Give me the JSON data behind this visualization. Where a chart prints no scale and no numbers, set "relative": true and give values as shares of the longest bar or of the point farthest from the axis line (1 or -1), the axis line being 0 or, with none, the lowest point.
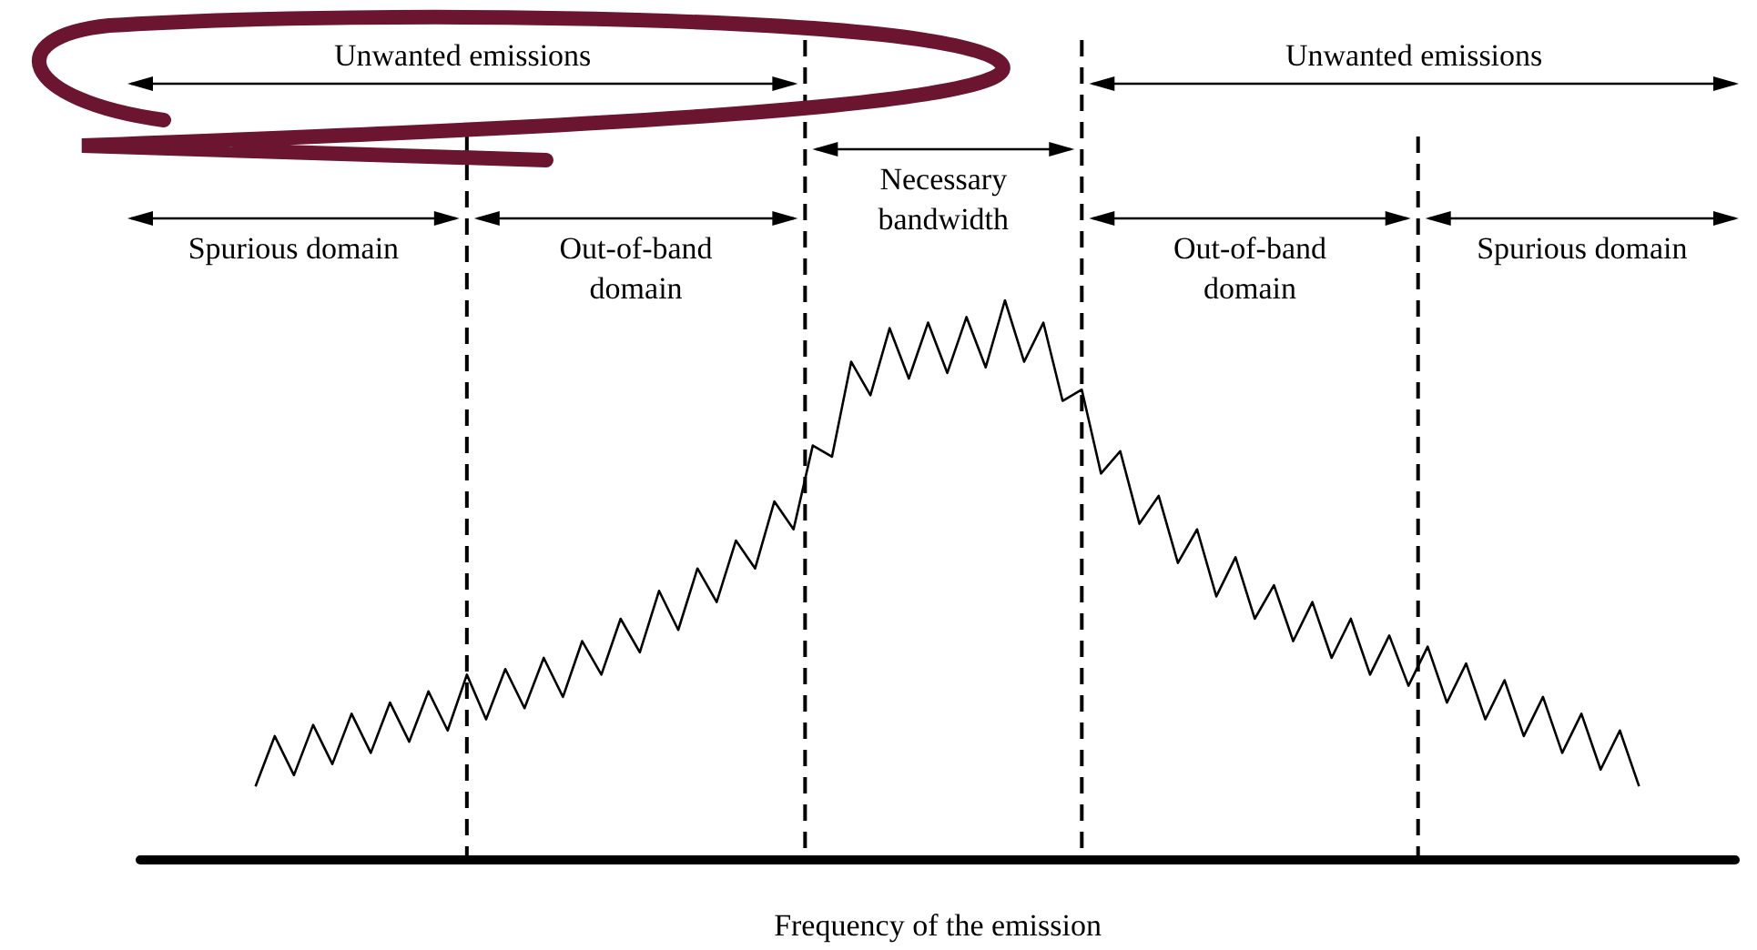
{
  "chart_data": {
    "type": "line",
    "relative": true,
    "color": "#000000",
    "marker": "none",
    "tick_labels": false,
    "xlabel": "Frequency of the emission",
    "categories": [
      null,
      null,
      null,
      null,
      null,
      null,
      null,
      null,
      null,
      null,
      null,
      null,
      null,
      null,
      null,
      null,
      null,
      null,
      null,
      null,
      null,
      null,
      null,
      null,
      null,
      null,
      null,
      null,
      null,
      null,
      null,
      null,
      null,
      null,
      null,
      null,
      null,
      null,
      null,
      null,
      null,
      null,
      null,
      null,
      null,
      null,
      null,
      null,
      null,
      null,
      null,
      null,
      null,
      null,
      null,
      null,
      null,
      null,
      null,
      null,
      null,
      null,
      null,
      null,
      null,
      null,
      null,
      null,
      null,
      null,
      null,
      null,
      null,
      null,
      null,
      null,
      null,
      null,
      null,
      null,
      null,
      null,
      null,
      null
    ],
    "values": [
      null,
      null,
      null,
      null,
      null,
      null,
      0.13,
      0.22,
      0.15,
      0.24,
      0.17,
      0.26,
      0.19,
      0.28,
      0.21,
      0.3,
      0.23,
      0.33,
      0.25,
      0.34,
      0.27,
      0.36,
      0.29,
      0.39,
      0.33,
      0.43,
      0.37,
      0.48,
      0.41,
      0.52,
      0.46,
      0.57,
      0.52,
      0.64,
      0.59,
      0.74,
      0.72,
      0.89,
      0.83,
      0.95,
      0.86,
      0.96,
      0.87,
      0.97,
      0.88,
      1.0,
      0.89,
      0.96,
      0.82,
      0.84,
      0.69,
      0.73,
      0.6,
      0.65,
      0.53,
      0.59,
      0.47,
      0.54,
      0.43,
      0.49,
      0.39,
      0.46,
      0.36,
      0.43,
      0.33,
      0.4,
      0.31,
      0.38,
      0.28,
      0.35,
      0.25,
      0.32,
      0.22,
      0.29,
      0.19,
      0.26,
      0.16,
      0.23,
      0.13,
      null,
      null,
      null,
      null,
      null
    ],
    "annotations": [
      "Unwanted emissions",
      "Unwanted emissions",
      "Necessary bandwidth",
      "Spurious domain",
      "Out-of-band domain",
      "Out-of-band domain",
      "Spurious domain"
    ]
  }
}
